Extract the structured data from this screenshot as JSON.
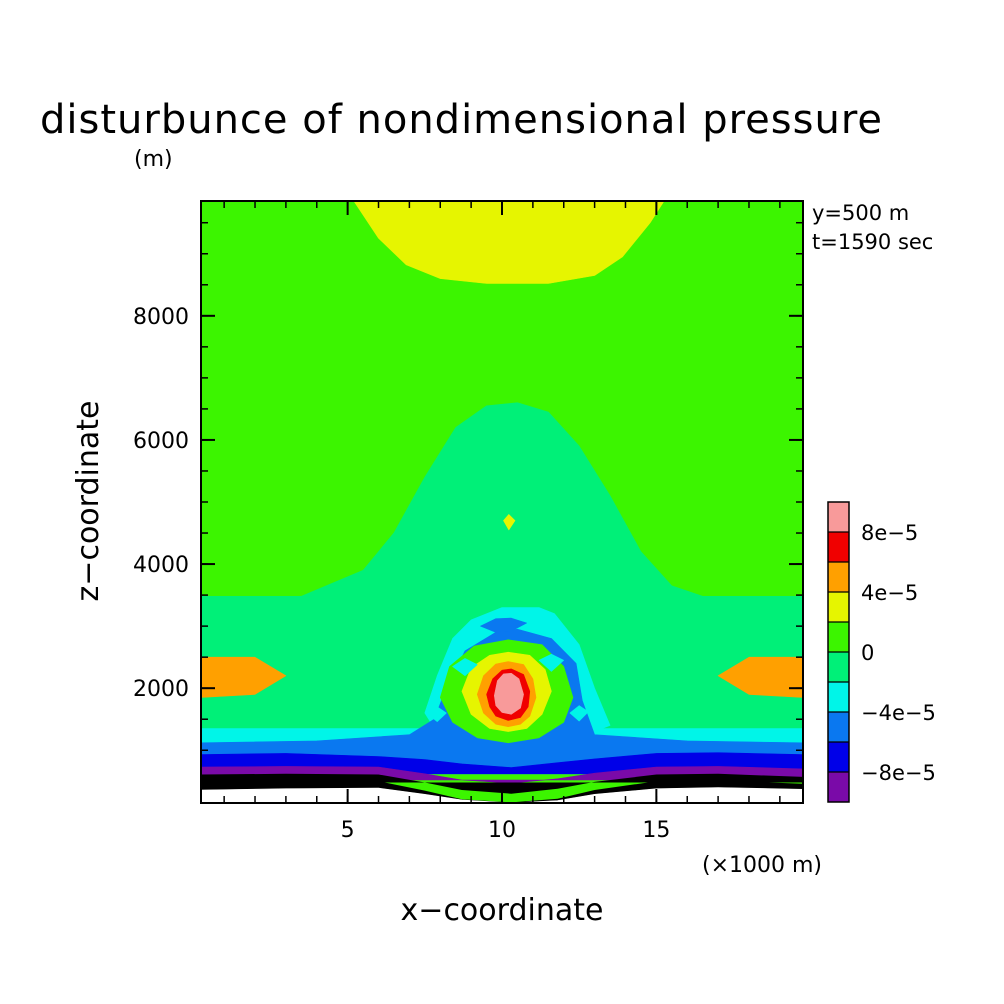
{
  "chart_data": {
    "type": "heatmap",
    "title": "disturbunce of nondimensional pressure",
    "unit_label": "(m)",
    "xlabel": "x-coordinate",
    "ylabel": "z-coordinate",
    "x_unit_label": "(×1000 m)",
    "xlim": [
      0.25,
      19.75
    ],
    "ylim": [
      150,
      9850
    ],
    "x_ticks": [
      {
        "value": 5,
        "label": "5"
      },
      {
        "value": 10,
        "label": "10"
      },
      {
        "value": 15,
        "label": "15"
      }
    ],
    "y_ticks": [
      {
        "value": 2000,
        "label": "2000"
      },
      {
        "value": 4000,
        "label": "4000"
      },
      {
        "value": 6000,
        "label": "6000"
      },
      {
        "value": 8000,
        "label": "8000"
      }
    ],
    "annotations": [
      "y=500 m",
      "t=1590 sec"
    ],
    "colorbar": {
      "levels": [
        -0.0001,
        -8e-05,
        -6e-05,
        -4e-05,
        -2e-05,
        0,
        2e-05,
        4e-05,
        6e-05,
        8e-05,
        0.0001
      ],
      "colors": [
        "#7a0aa8",
        "#0000e8",
        "#0a78f0",
        "#00f5e8",
        "#00f078",
        "#3cf500",
        "#e6f500",
        "#ffa000",
        "#f00000",
        "#f89a9a"
      ],
      "labels": [
        {
          "value": -8e-05,
          "label": "-8e-5"
        },
        {
          "value": -4e-05,
          "label": "-4e-5"
        },
        {
          "value": 0,
          "label": "0"
        },
        {
          "value": 4e-05,
          "label": "4e-5"
        },
        {
          "value": 8e-05,
          "label": "8e-5"
        }
      ]
    },
    "regions": [
      {
        "level": 0,
        "points": [
          [
            0.25,
            9850
          ],
          [
            19.75,
            9850
          ],
          [
            19.75,
            150
          ],
          [
            0.25,
            150
          ]
        ]
      },
      {
        "level": 1,
        "points": [
          [
            5.2,
            9850
          ],
          [
            6.0,
            9250
          ],
          [
            6.9,
            8820
          ],
          [
            8.0,
            8600
          ],
          [
            9.5,
            8520
          ],
          [
            11.5,
            8520
          ],
          [
            13.0,
            8650
          ],
          [
            13.9,
            8950
          ],
          [
            14.8,
            9500
          ],
          [
            15.25,
            9850
          ]
        ]
      },
      {
        "level": -1,
        "points": [
          [
            0.25,
            3480
          ],
          [
            3.5,
            3480
          ],
          [
            5.5,
            3900
          ],
          [
            6.5,
            4500
          ],
          [
            7.5,
            5400
          ],
          [
            8.5,
            6200
          ],
          [
            9.5,
            6550
          ],
          [
            10.5,
            6600
          ],
          [
            11.5,
            6450
          ],
          [
            12.5,
            5900
          ],
          [
            13.5,
            5100
          ],
          [
            14.5,
            4200
          ],
          [
            15.5,
            3650
          ],
          [
            16.5,
            3480
          ],
          [
            19.75,
            3480
          ],
          [
            19.75,
            1000
          ],
          [
            0.25,
            1000
          ]
        ]
      },
      {
        "level": 1,
        "points": [
          [
            10.22,
            4800
          ],
          [
            10.42,
            4700
          ],
          [
            10.22,
            4550
          ],
          [
            10.05,
            4700
          ]
        ]
      },
      {
        "level": 2,
        "points": [
          [
            0.25,
            2500
          ],
          [
            2.0,
            2500
          ],
          [
            3.0,
            2200
          ],
          [
            2.0,
            1900
          ],
          [
            0.25,
            1850
          ]
        ]
      },
      {
        "level": 2,
        "points": [
          [
            19.75,
            2500
          ],
          [
            18.0,
            2500
          ],
          [
            17.0,
            2200
          ],
          [
            18.0,
            1900
          ],
          [
            19.75,
            1850
          ]
        ]
      },
      {
        "level": -2,
        "points": [
          [
            0.25,
            1350
          ],
          [
            19.75,
            1350
          ],
          [
            19.75,
            620
          ],
          [
            0.25,
            620
          ]
        ]
      },
      {
        "level": -2,
        "points": [
          [
            7.5,
            1600
          ],
          [
            7.9,
            2200
          ],
          [
            8.4,
            2800
          ],
          [
            9.0,
            3100
          ],
          [
            10.0,
            3300
          ],
          [
            11.2,
            3300
          ],
          [
            11.7,
            3200
          ],
          [
            12.5,
            2700
          ],
          [
            13.0,
            2000
          ],
          [
            13.5,
            1400
          ],
          [
            12.5,
            1200
          ],
          [
            10.0,
            1100
          ],
          [
            8.0,
            1200
          ]
        ]
      },
      {
        "level": -3,
        "points": [
          [
            0.25,
            1120
          ],
          [
            4.0,
            1150
          ],
          [
            7.0,
            1250
          ],
          [
            7.8,
            1500
          ],
          [
            8.2,
            2000
          ],
          [
            8.8,
            2600
          ],
          [
            9.8,
            2900
          ],
          [
            10.5,
            2950
          ],
          [
            11.6,
            2800
          ],
          [
            12.4,
            2400
          ],
          [
            12.6,
            1800
          ],
          [
            13.0,
            1250
          ],
          [
            16.0,
            1150
          ],
          [
            19.75,
            1120
          ],
          [
            19.75,
            620
          ],
          [
            0.25,
            620
          ]
        ]
      },
      {
        "level": 0,
        "points": [
          [
            8.0,
            1850
          ],
          [
            8.3,
            2350
          ],
          [
            9.1,
            2680
          ],
          [
            10.2,
            2780
          ],
          [
            11.3,
            2700
          ],
          [
            12.0,
            2350
          ],
          [
            12.3,
            1850
          ],
          [
            12.0,
            1450
          ],
          [
            11.2,
            1200
          ],
          [
            10.2,
            1120
          ],
          [
            9.2,
            1200
          ],
          [
            8.4,
            1450
          ]
        ]
      },
      {
        "level": 1,
        "points": [
          [
            8.7,
            1950
          ],
          [
            9.0,
            2330
          ],
          [
            9.6,
            2530
          ],
          [
            10.2,
            2580
          ],
          [
            10.9,
            2530
          ],
          [
            11.4,
            2300
          ],
          [
            11.6,
            1950
          ],
          [
            11.3,
            1580
          ],
          [
            10.8,
            1350
          ],
          [
            10.2,
            1300
          ],
          [
            9.6,
            1350
          ],
          [
            9.0,
            1580
          ]
        ]
      },
      {
        "level": 2,
        "points": [
          [
            9.2,
            1900
          ],
          [
            9.4,
            2200
          ],
          [
            9.8,
            2390
          ],
          [
            10.2,
            2430
          ],
          [
            10.7,
            2380
          ],
          [
            11.0,
            2150
          ],
          [
            11.1,
            1850
          ],
          [
            10.9,
            1550
          ],
          [
            10.6,
            1420
          ],
          [
            10.2,
            1380
          ],
          [
            9.8,
            1420
          ],
          [
            9.4,
            1600
          ]
        ]
      },
      {
        "level": 3,
        "points": [
          [
            9.5,
            1900
          ],
          [
            9.7,
            2150
          ],
          [
            10.0,
            2290
          ],
          [
            10.3,
            2310
          ],
          [
            10.7,
            2220
          ],
          [
            10.9,
            1950
          ],
          [
            10.85,
            1700
          ],
          [
            10.6,
            1530
          ],
          [
            10.2,
            1480
          ],
          [
            9.8,
            1550
          ],
          [
            9.6,
            1700
          ]
        ]
      },
      {
        "level": 4,
        "points": [
          [
            9.75,
            1880
          ],
          [
            9.85,
            2120
          ],
          [
            10.05,
            2230
          ],
          [
            10.3,
            2240
          ],
          [
            10.55,
            2150
          ],
          [
            10.7,
            1900
          ],
          [
            10.6,
            1680
          ],
          [
            10.3,
            1580
          ],
          [
            10.0,
            1610
          ],
          [
            9.8,
            1720
          ]
        ]
      },
      {
        "level": -3,
        "points": [
          [
            9.3,
            3000
          ],
          [
            9.8,
            3120
          ],
          [
            10.3,
            3130
          ],
          [
            10.8,
            3050
          ],
          [
            10.3,
            2920
          ],
          [
            9.8,
            2900
          ]
        ]
      },
      {
        "level": -2,
        "points": [
          [
            8.4,
            2350
          ],
          [
            8.8,
            2480
          ],
          [
            9.2,
            2380
          ],
          [
            8.8,
            2200
          ]
        ]
      },
      {
        "level": -2,
        "points": [
          [
            11.2,
            2450
          ],
          [
            11.6,
            2550
          ],
          [
            12.0,
            2450
          ],
          [
            11.6,
            2270
          ]
        ]
      },
      {
        "level": -2,
        "points": [
          [
            7.6,
            1580
          ],
          [
            7.9,
            1700
          ],
          [
            8.2,
            1600
          ],
          [
            7.9,
            1460
          ]
        ]
      },
      {
        "level": -2,
        "points": [
          [
            12.2,
            1600
          ],
          [
            12.5,
            1720
          ],
          [
            12.8,
            1620
          ],
          [
            12.5,
            1470
          ]
        ]
      },
      {
        "level": -4,
        "points": [
          [
            0.25,
            930
          ],
          [
            3.0,
            950
          ],
          [
            6.0,
            900
          ],
          [
            7.5,
            850
          ],
          [
            8.7,
            780
          ],
          [
            10.3,
            720
          ],
          [
            11.8,
            800
          ],
          [
            13.0,
            860
          ],
          [
            15.0,
            950
          ],
          [
            17.0,
            960
          ],
          [
            19.75,
            930
          ],
          [
            19.75,
            620
          ],
          [
            0.25,
            620
          ]
        ]
      },
      {
        "level": -5,
        "points": [
          [
            0.25,
            730
          ],
          [
            3.0,
            740
          ],
          [
            6.0,
            730
          ],
          [
            7.5,
            620
          ],
          [
            8.7,
            520
          ],
          [
            10.3,
            470
          ],
          [
            11.8,
            540
          ],
          [
            13.0,
            630
          ],
          [
            15.0,
            730
          ],
          [
            17.0,
            740
          ],
          [
            19.75,
            700
          ],
          [
            19.75,
            520
          ],
          [
            0.25,
            520
          ]
        ]
      },
      {
        "level": -6,
        "points": [
          [
            0.25,
            610
          ],
          [
            3.0,
            620
          ],
          [
            6.0,
            610
          ],
          [
            7.5,
            480
          ],
          [
            8.7,
            360
          ],
          [
            10.3,
            300
          ],
          [
            11.8,
            380
          ],
          [
            13.0,
            490
          ],
          [
            15.0,
            610
          ],
          [
            17.0,
            620
          ],
          [
            19.75,
            570
          ],
          [
            19.75,
            480
          ],
          [
            0.25,
            480
          ]
        ]
      },
      {
        "level": -7,
        "points": [
          [
            0.25,
            480
          ],
          [
            3.0,
            520
          ],
          [
            6.0,
            500
          ],
          [
            7.5,
            350
          ],
          [
            8.7,
            210
          ],
          [
            10.3,
            160
          ],
          [
            11.8,
            220
          ],
          [
            13.0,
            360
          ],
          [
            15.0,
            500
          ],
          [
            17.0,
            510
          ],
          [
            19.75,
            460
          ],
          [
            19.75,
            150
          ],
          [
            0.25,
            150
          ]
        ]
      },
      {
        "level": "blank",
        "points": [
          [
            0.25,
            150
          ],
          [
            0.25,
            360
          ],
          [
            3.0,
            380
          ],
          [
            6.0,
            390
          ],
          [
            7.5,
            290
          ],
          [
            8.7,
            200
          ],
          [
            10.3,
            150
          ],
          [
            11.8,
            190
          ],
          [
            13.0,
            290
          ],
          [
            15.0,
            380
          ],
          [
            17.0,
            400
          ],
          [
            19.75,
            370
          ],
          [
            19.75,
            150
          ]
        ]
      }
    ]
  }
}
